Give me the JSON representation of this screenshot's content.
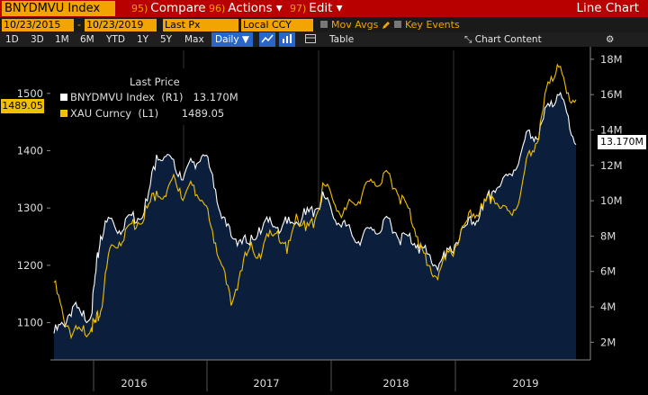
{
  "toolbar": {
    "ticker": "BNYDMVU Index",
    "compare_num": "95)",
    "compare_label": "Compare",
    "actions_num": "96)",
    "actions_label": "Actions ▾",
    "edit_num": "97)",
    "edit_label": "Edit ▾",
    "title": "Line Chart"
  },
  "params": {
    "start_date": "10/23/2015",
    "end_date": "10/23/2019",
    "field": "Last Px",
    "currency": "Local CCY",
    "mov_avgs": "Mov Avgs",
    "key_events": "Key Events"
  },
  "periods": [
    "1D",
    "3D",
    "1M",
    "6M",
    "YTD",
    "1Y",
    "5Y",
    "Max"
  ],
  "frequency": "Daily ▼",
  "table_label": "Table",
  "chart_content_label": "Chart Content",
  "legend": {
    "header": "Last Price",
    "rows": [
      {
        "label": "BNYDMVU Index  (R1)",
        "value": "13.170M",
        "color": "#ffffff"
      },
      {
        "label": "XAU Curncy  (L1)",
        "value": "1489.05",
        "color": "#f2c000"
      }
    ]
  },
  "last_value_tags": {
    "left": "1489.05",
    "right": "13.170M"
  },
  "chart_data": {
    "type": "line",
    "x_labels": [
      "2016",
      "2017",
      "2018",
      "2019"
    ],
    "left_axis": {
      "ticks": [
        "1100",
        "1200",
        "1300",
        "1400",
        "1500"
      ],
      "range": [
        1035,
        1575
      ]
    },
    "right_axis": {
      "ticks": [
        "2M",
        "4M",
        "6M",
        "8M",
        "10M",
        "12M",
        "14M",
        "16M",
        "18M"
      ],
      "range": [
        1,
        18.5
      ]
    },
    "series": [
      {
        "name": "BNYDMVU Index",
        "axis": "right",
        "color": "#ffffff",
        "fill": "#0b1e3c",
        "points": [
          [
            0,
            2.5
          ],
          [
            0.02,
            3.0
          ],
          [
            0.04,
            4.0
          ],
          [
            0.06,
            3.5
          ],
          [
            0.08,
            3.5
          ],
          [
            0.09,
            6.0
          ],
          [
            0.1,
            8.0
          ],
          [
            0.12,
            9.0
          ],
          [
            0.14,
            8.3
          ],
          [
            0.16,
            9.2
          ],
          [
            0.18,
            9.0
          ],
          [
            0.2,
            10.0
          ],
          [
            0.22,
            12.6
          ],
          [
            0.24,
            12.5
          ],
          [
            0.26,
            11.8
          ],
          [
            0.28,
            11.5
          ],
          [
            0.3,
            12.2
          ],
          [
            0.32,
            12.6
          ],
          [
            0.34,
            11.5
          ],
          [
            0.36,
            9.0
          ],
          [
            0.38,
            8.0
          ],
          [
            0.4,
            7.8
          ],
          [
            0.42,
            7.5
          ],
          [
            0.44,
            8.5
          ],
          [
            0.46,
            8.8
          ],
          [
            0.48,
            8.5
          ],
          [
            0.5,
            8.7
          ],
          [
            0.52,
            8.8
          ],
          [
            0.54,
            9.2
          ],
          [
            0.56,
            9.5
          ],
          [
            0.58,
            10.2
          ],
          [
            0.6,
            9.0
          ],
          [
            0.62,
            8.8
          ],
          [
            0.64,
            8.0
          ],
          [
            0.66,
            7.8
          ],
          [
            0.68,
            8.5
          ],
          [
            0.7,
            8.2
          ],
          [
            0.72,
            9.0
          ],
          [
            0.74,
            7.8
          ],
          [
            0.76,
            8.0
          ],
          [
            0.78,
            7.5
          ],
          [
            0.8,
            7.0
          ],
          [
            0.82,
            6.3
          ],
          [
            0.84,
            6.8
          ],
          [
            0.86,
            7.5
          ],
          [
            0.88,
            8.5
          ],
          [
            0.9,
            8.8
          ],
          [
            0.92,
            9.5
          ],
          [
            0.94,
            10.5
          ],
          [
            0.96,
            11.0
          ],
          [
            0.98,
            11.5
          ],
          [
            1.0,
            12.5
          ],
          [
            1.02,
            14.0
          ],
          [
            1.04,
            13.5
          ],
          [
            1.06,
            15.5
          ],
          [
            1.08,
            16.0
          ],
          [
            1.1,
            15.0
          ],
          [
            1.12,
            13.17
          ]
        ]
      },
      {
        "name": "XAU Curncy",
        "axis": "left",
        "color": "#f2c000",
        "fill": "none",
        "points": [
          [
            0,
            1170
          ],
          [
            0.02,
            1110
          ],
          [
            0.04,
            1080
          ],
          [
            0.06,
            1085
          ],
          [
            0.08,
            1090
          ],
          [
            0.09,
            1100
          ],
          [
            0.1,
            1120
          ],
          [
            0.12,
            1230
          ],
          [
            0.14,
            1240
          ],
          [
            0.16,
            1270
          ],
          [
            0.18,
            1275
          ],
          [
            0.2,
            1300
          ],
          [
            0.22,
            1330
          ],
          [
            0.24,
            1320
          ],
          [
            0.26,
            1350
          ],
          [
            0.28,
            1320
          ],
          [
            0.3,
            1340
          ],
          [
            0.32,
            1310
          ],
          [
            0.34,
            1260
          ],
          [
            0.36,
            1200
          ],
          [
            0.38,
            1130
          ],
          [
            0.4,
            1190
          ],
          [
            0.42,
            1230
          ],
          [
            0.44,
            1220
          ],
          [
            0.46,
            1250
          ],
          [
            0.48,
            1260
          ],
          [
            0.5,
            1220
          ],
          [
            0.52,
            1290
          ],
          [
            0.54,
            1260
          ],
          [
            0.56,
            1280
          ],
          [
            0.58,
            1340
          ],
          [
            0.6,
            1310
          ],
          [
            0.62,
            1290
          ],
          [
            0.64,
            1310
          ],
          [
            0.66,
            1320
          ],
          [
            0.68,
            1350
          ],
          [
            0.7,
            1340
          ],
          [
            0.72,
            1360
          ],
          [
            0.74,
            1320
          ],
          [
            0.76,
            1300
          ],
          [
            0.78,
            1250
          ],
          [
            0.8,
            1200
          ],
          [
            0.82,
            1180
          ],
          [
            0.84,
            1210
          ],
          [
            0.86,
            1230
          ],
          [
            0.88,
            1270
          ],
          [
            0.9,
            1290
          ],
          [
            0.92,
            1300
          ],
          [
            0.94,
            1320
          ],
          [
            0.96,
            1300
          ],
          [
            0.98,
            1290
          ],
          [
            1.0,
            1320
          ],
          [
            1.02,
            1400
          ],
          [
            1.04,
            1420
          ],
          [
            1.06,
            1520
          ],
          [
            1.08,
            1550
          ],
          [
            1.1,
            1500
          ],
          [
            1.12,
            1489.05
          ]
        ]
      }
    ]
  }
}
